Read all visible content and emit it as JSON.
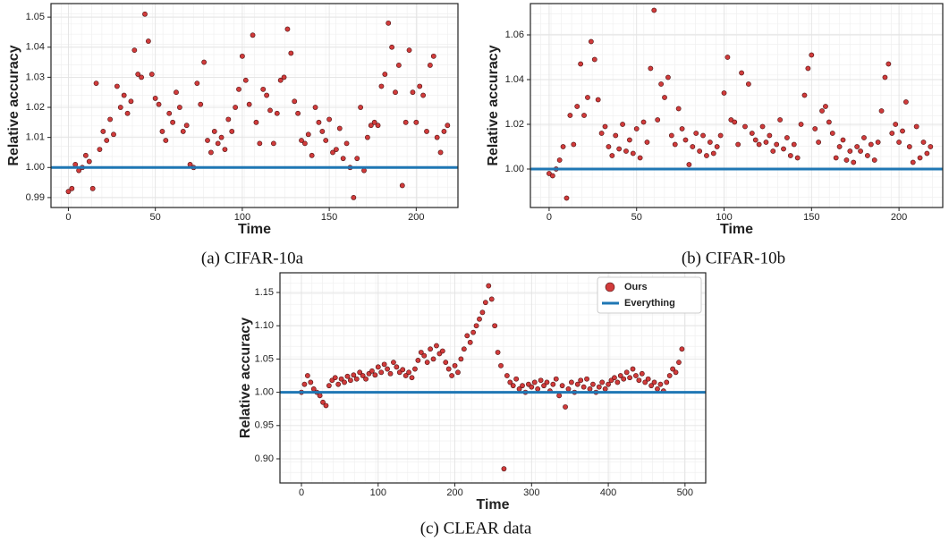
{
  "chart_data": [
    {
      "type": "scatter",
      "caption": "(a) CIFAR-10a",
      "xlabel": "Time",
      "ylabel": "Relative accuracy",
      "color": "#d13b3b",
      "grid": true,
      "xlim": [
        -10,
        224
      ],
      "xticks": [
        0,
        50,
        100,
        150,
        200
      ],
      "ylim": [
        0.9867,
        1.0545
      ],
      "yticks": [
        0.99,
        {
          "value": 1,
          "label": "1.00"
        },
        1.01,
        1.02,
        1.03,
        1.04,
        1.05
      ],
      "reference": {
        "value": 1,
        "color": "#1f77b4"
      },
      "x": [
        0,
        2,
        4,
        6,
        8,
        10,
        12,
        14,
        16,
        18,
        20,
        22,
        24,
        26,
        28,
        30,
        32,
        34,
        36,
        38,
        40,
        42,
        44,
        46,
        48,
        50,
        52,
        54,
        56,
        58,
        60,
        62,
        64,
        66,
        68,
        70,
        72,
        74,
        76,
        78,
        80,
        82,
        84,
        86,
        88,
        90,
        92,
        94,
        96,
        98,
        100,
        102,
        104,
        106,
        108,
        110,
        112,
        114,
        116,
        118,
        120,
        122,
        124,
        126,
        128,
        130,
        132,
        134,
        136,
        138,
        140,
        142,
        144,
        146,
        148,
        150,
        152,
        154,
        156,
        158,
        160,
        162,
        164,
        166,
        168,
        170,
        172,
        174,
        176,
        178,
        180,
        182,
        184,
        186,
        188,
        190,
        192,
        194,
        196,
        198,
        200,
        202,
        204,
        206,
        208,
        210,
        212,
        214,
        216,
        218
      ],
      "values": [
        0.992,
        0.993,
        1.001,
        0.999,
        1.0,
        1.004,
        1.002,
        0.993,
        1.028,
        1.006,
        1.012,
        1.009,
        1.016,
        1.011,
        1.027,
        1.02,
        1.024,
        1.018,
        1.022,
        1.039,
        1.031,
        1.03,
        1.051,
        1.042,
        1.031,
        1.023,
        1.021,
        1.012,
        1.009,
        1.018,
        1.015,
        1.025,
        1.02,
        1.012,
        1.014,
        1.001,
        1.0,
        1.028,
        1.021,
        1.035,
        1.009,
        1.005,
        1.012,
        1.008,
        1.01,
        1.006,
        1.016,
        1.012,
        1.02,
        1.026,
        1.037,
        1.029,
        1.021,
        1.044,
        1.015,
        1.008,
        1.026,
        1.024,
        1.019,
        1.008,
        1.018,
        1.029,
        1.03,
        1.046,
        1.038,
        1.022,
        1.018,
        1.009,
        1.008,
        1.011,
        1.004,
        1.02,
        1.015,
        1.012,
        1.009,
        1.016,
        1.005,
        1.006,
        1.013,
        1.003,
        1.008,
        1.0,
        0.99,
        1.003,
        1.02,
        0.999,
        1.01,
        1.014,
        1.015,
        1.014,
        1.027,
        1.031,
        1.048,
        1.04,
        1.025,
        1.034,
        0.994,
        1.015,
        1.039,
        1.025,
        1.015,
        1.027,
        1.024,
        1.012,
        1.034,
        1.037,
        1.01,
        1.005,
        1.012,
        1.014
      ]
    },
    {
      "type": "scatter",
      "caption": "(b) CIFAR-10b",
      "xlabel": "Time",
      "ylabel": "Relative accuracy",
      "color": "#d13b3b",
      "grid": true,
      "xlim": [
        -10.7,
        225
      ],
      "xticks": [
        0,
        50,
        100,
        150,
        200
      ],
      "ylim": [
        0.9828,
        1.074
      ],
      "yticks": [
        {
          "value": 1,
          "label": "1.00"
        },
        1.02,
        1.04,
        1.06
      ],
      "reference": {
        "value": 1,
        "color": "#1f77b4"
      },
      "x": [
        0,
        2,
        4,
        6,
        8,
        10,
        12,
        14,
        16,
        18,
        20,
        22,
        24,
        26,
        28,
        30,
        32,
        34,
        36,
        38,
        40,
        42,
        44,
        46,
        48,
        50,
        52,
        54,
        56,
        58,
        60,
        62,
        64,
        66,
        68,
        70,
        72,
        74,
        76,
        78,
        80,
        82,
        84,
        86,
        88,
        90,
        92,
        94,
        96,
        98,
        100,
        102,
        104,
        106,
        108,
        110,
        112,
        114,
        116,
        118,
        120,
        122,
        124,
        126,
        128,
        130,
        132,
        134,
        136,
        138,
        140,
        142,
        144,
        146,
        148,
        150,
        152,
        154,
        156,
        158,
        160,
        162,
        164,
        166,
        168,
        170,
        172,
        174,
        176,
        178,
        180,
        182,
        184,
        186,
        188,
        190,
        192,
        194,
        196,
        198,
        200,
        202,
        204,
        206,
        208,
        210,
        212,
        214,
        216,
        218
      ],
      "values": [
        0.998,
        0.997,
        1.0,
        1.004,
        1.01,
        0.987,
        1.024,
        1.011,
        1.028,
        1.047,
        1.024,
        1.032,
        1.057,
        1.049,
        1.031,
        1.016,
        1.019,
        1.01,
        1.006,
        1.015,
        1.009,
        1.02,
        1.008,
        1.013,
        1.007,
        1.018,
        1.005,
        1.021,
        1.012,
        1.045,
        1.071,
        1.022,
        1.038,
        1.032,
        1.041,
        1.015,
        1.011,
        1.027,
        1.018,
        1.013,
        1.002,
        1.01,
        1.016,
        1.008,
        1.015,
        1.006,
        1.012,
        1.007,
        1.01,
        1.015,
        1.034,
        1.05,
        1.022,
        1.021,
        1.011,
        1.043,
        1.019,
        1.038,
        1.016,
        1.013,
        1.011,
        1.019,
        1.012,
        1.015,
        1.008,
        1.011,
        1.022,
        1.009,
        1.014,
        1.006,
        1.011,
        1.005,
        1.02,
        1.033,
        1.045,
        1.051,
        1.018,
        1.012,
        1.026,
        1.028,
        1.021,
        1.016,
        1.005,
        1.01,
        1.013,
        1.004,
        1.008,
        1.003,
        1.01,
        1.008,
        1.014,
        1.006,
        1.011,
        1.004,
        1.012,
        1.026,
        1.041,
        1.047,
        1.016,
        1.02,
        1.012,
        1.017,
        1.03,
        1.01,
        1.003,
        1.019,
        1.005,
        1.012,
        1.007,
        1.01
      ]
    },
    {
      "type": "scatter",
      "caption": "(c) CLEAR data",
      "xlabel": "Time",
      "ylabel": "Relative accuracy",
      "grid": true,
      "legend": "upper right",
      "xlim": [
        -28,
        527
      ],
      "xticks": [
        0,
        100,
        200,
        300,
        400,
        500
      ],
      "ylim": [
        0.8637,
        1.1796
      ],
      "yticks": [
        {
          "value": 0.9,
          "label": "0.90"
        },
        0.95,
        {
          "value": 1,
          "label": "1.00"
        },
        1.05,
        {
          "value": 1.1,
          "label": "1.10"
        },
        1.15
      ],
      "reference": {
        "name": "Everything",
        "value": 1,
        "color": "#1f77b4"
      },
      "series": [
        {
          "name": "Ours",
          "color": "#d13b3b",
          "x": [
            0,
            4,
            8,
            12,
            16,
            20,
            24,
            28,
            32,
            36,
            40,
            44,
            48,
            52,
            56,
            60,
            64,
            68,
            72,
            76,
            80,
            84,
            88,
            92,
            96,
            100,
            104,
            108,
            112,
            116,
            120,
            124,
            128,
            132,
            136,
            140,
            144,
            148,
            152,
            156,
            160,
            164,
            168,
            172,
            176,
            180,
            184,
            188,
            192,
            196,
            200,
            204,
            208,
            212,
            216,
            220,
            224,
            228,
            232,
            236,
            240,
            244,
            248,
            252,
            256,
            260,
            264,
            268,
            272,
            276,
            280,
            284,
            288,
            292,
            296,
            300,
            304,
            308,
            312,
            316,
            320,
            324,
            328,
            332,
            336,
            340,
            344,
            348,
            352,
            356,
            360,
            364,
            368,
            372,
            376,
            380,
            384,
            388,
            392,
            396,
            400,
            404,
            408,
            412,
            416,
            420,
            424,
            428,
            432,
            436,
            440,
            444,
            448,
            452,
            456,
            460,
            464,
            468,
            472,
            476,
            480,
            484,
            488,
            492,
            496
          ],
          "values": [
            1.0,
            1.012,
            1.025,
            1.015,
            1.005,
            1.0,
            0.995,
            0.985,
            0.98,
            1.01,
            1.018,
            1.022,
            1.012,
            1.02,
            1.015,
            1.024,
            1.018,
            1.026,
            1.02,
            1.03,
            1.025,
            1.02,
            1.028,
            1.032,
            1.026,
            1.038,
            1.03,
            1.042,
            1.035,
            1.028,
            1.045,
            1.038,
            1.03,
            1.034,
            1.025,
            1.03,
            1.022,
            1.035,
            1.048,
            1.06,
            1.055,
            1.045,
            1.065,
            1.05,
            1.07,
            1.058,
            1.062,
            1.045,
            1.035,
            1.025,
            1.04,
            1.03,
            1.05,
            1.065,
            1.085,
            1.075,
            1.09,
            1.1,
            1.11,
            1.12,
            1.135,
            1.16,
            1.14,
            1.1,
            1.06,
            1.04,
            0.885,
            1.025,
            1.015,
            1.01,
            1.02,
            1.005,
            1.01,
            1.0,
            1.012,
            1.008,
            1.015,
            1.005,
            1.018,
            1.01,
            1.015,
            1.002,
            1.012,
            1.02,
            0.995,
            1.01,
            0.978,
            1.005,
            1.015,
            1.0,
            1.012,
            1.018,
            1.008,
            1.02,
            1.005,
            1.012,
            1.0,
            1.008,
            1.015,
            1.005,
            1.012,
            1.018,
            1.022,
            1.015,
            1.025,
            1.02,
            1.03,
            1.022,
            1.035,
            1.025,
            1.018,
            1.028,
            1.015,
            1.02,
            1.01,
            1.015,
            1.005,
            1.012,
            1.002,
            1.015,
            1.025,
            1.035,
            1.03,
            1.045,
            1.065
          ]
        }
      ]
    }
  ]
}
